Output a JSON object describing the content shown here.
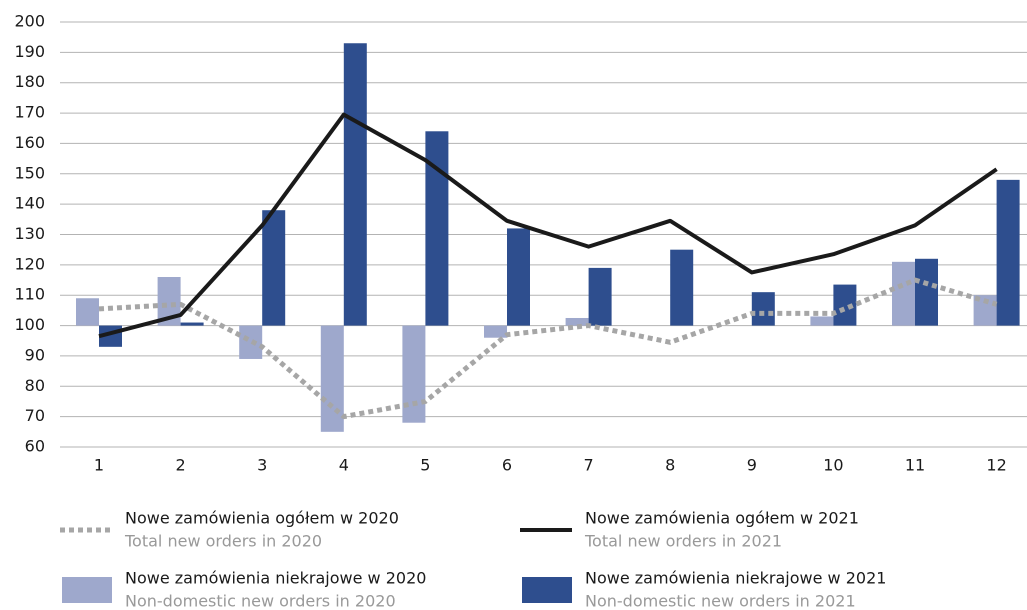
{
  "chart_data": {
    "type": "bar_line",
    "categories": [
      "1",
      "2",
      "3",
      "4",
      "5",
      "6",
      "7",
      "8",
      "9",
      "10",
      "11",
      "12"
    ],
    "ylim": [
      60,
      200
    ],
    "yticks": [
      60,
      70,
      80,
      90,
      100,
      110,
      120,
      130,
      140,
      150,
      160,
      170,
      180,
      190,
      200
    ],
    "grid": true,
    "bar_baseline": 100,
    "series": [
      {
        "name": "Nowe zamówienia ogółem w 2020",
        "name_en": "Total new orders in 2020",
        "kind": "line",
        "dash": true,
        "color": "#a6a6a6",
        "values": [
          105.5,
          107,
          93,
          70,
          75,
          97,
          100,
          94.5,
          104,
          104,
          115,
          107
        ]
      },
      {
        "name": "Nowe zamówienia ogółem w 2021",
        "name_en": "Total new orders in 2021",
        "kind": "line",
        "dash": false,
        "color": "#1a1a1a",
        "values": [
          96.5,
          103.5,
          133,
          169.5,
          154.5,
          134.5,
          126,
          134.5,
          117.5,
          123.5,
          133,
          151.5
        ]
      },
      {
        "name": "Nowe zamówienia niekrajowe w 2020",
        "name_en": "Non-domestic new orders in 2020",
        "kind": "bar",
        "color": "#9ea8cc",
        "values": [
          109,
          116,
          89,
          65,
          68,
          96,
          102.5,
          100,
          100,
          103,
          121,
          110
        ]
      },
      {
        "name": "Nowe zamówienia niekrajowe w 2021",
        "name_en": "Non-domestic new orders in 2021",
        "kind": "bar",
        "color": "#2e4e8e",
        "values": [
          93,
          101,
          138,
          193,
          164,
          132,
          119,
          125,
          111,
          113.5,
          122,
          148
        ]
      }
    ]
  }
}
